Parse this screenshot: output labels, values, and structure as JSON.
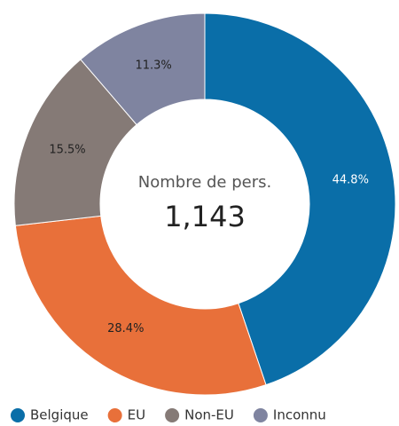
{
  "chart_data": {
    "type": "donut",
    "categories": [
      "Belgique",
      "EU",
      "Non-EU",
      "Inconnu"
    ],
    "values": [
      44.8,
      28.4,
      15.5,
      11.3
    ],
    "value_labels": [
      "44.8%",
      "28.4%",
      "15.5%",
      "11.3%"
    ],
    "colors": [
      "#0a6ea8",
      "#e8703a",
      "#857a76",
      "#7f84a0"
    ],
    "center_title": "Nombre de pers.",
    "center_value": "1,143",
    "legend": "bottom"
  }
}
